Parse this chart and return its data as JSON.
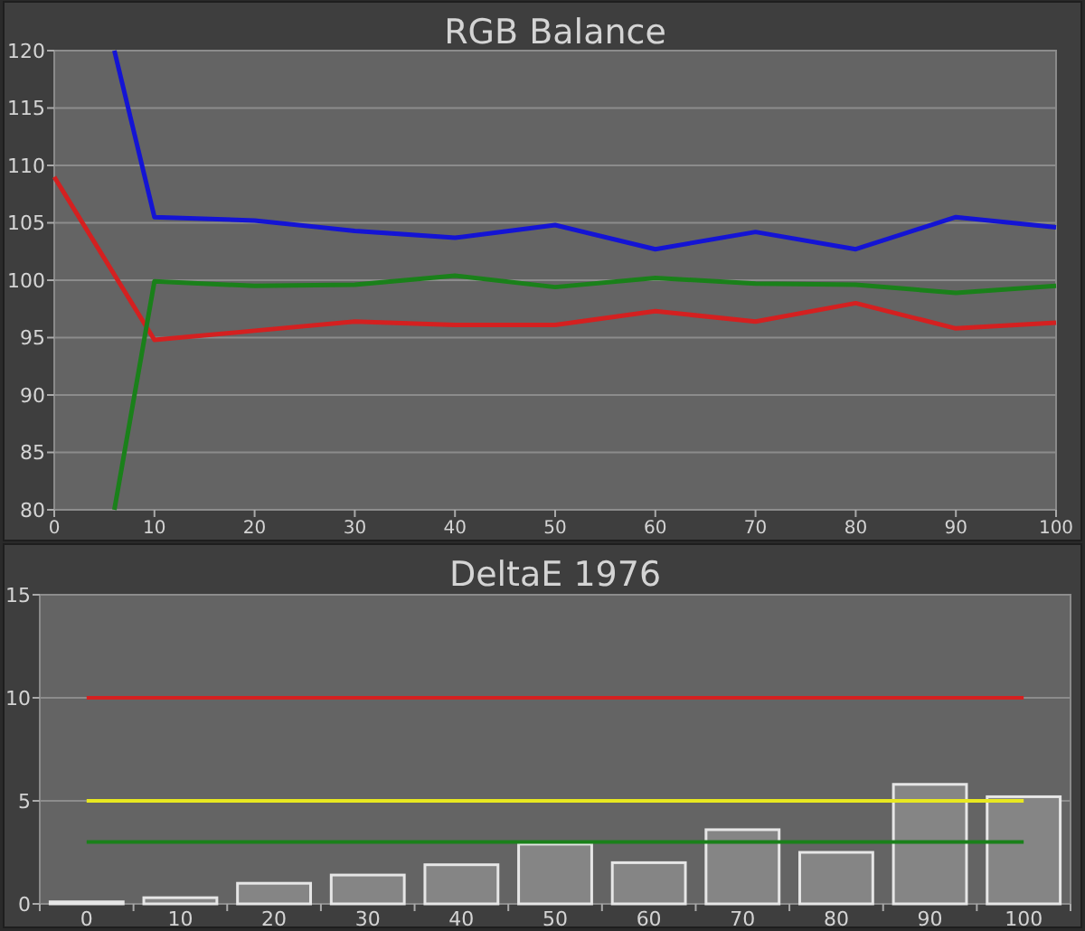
{
  "chart_data": [
    {
      "type": "line",
      "title": "RGB Balance",
      "xlim": [
        0,
        100
      ],
      "xticks": [
        0,
        10,
        20,
        30,
        40,
        50,
        60,
        70,
        80,
        90,
        100
      ],
      "ylim": [
        80,
        120
      ],
      "yticks": [
        80,
        85,
        90,
        95,
        100,
        105,
        110,
        115,
        120
      ],
      "grid": "y",
      "marker": "none",
      "line_style": "solid",
      "series": [
        {
          "color": "#d42020",
          "x": [
            0,
            10,
            20,
            30,
            40,
            50,
            60,
            70,
            80,
            90,
            100
          ],
          "values": [
            109,
            94.8,
            95.6,
            96.4,
            96.1,
            96.1,
            97.3,
            96.4,
            98.0,
            95.8,
            96.3
          ]
        },
        {
          "color": "#1a801a",
          "x": [
            6,
            10,
            20,
            30,
            40,
            50,
            60,
            70,
            80,
            90,
            100
          ],
          "values": [
            80,
            99.9,
            99.5,
            99.6,
            100.4,
            99.4,
            100.2,
            99.7,
            99.6,
            98.9,
            99.5
          ]
        },
        {
          "color": "#1414d4",
          "x": [
            6,
            10,
            20,
            30,
            40,
            50,
            60,
            70,
            80,
            90,
            100
          ],
          "values": [
            120,
            105.5,
            105.2,
            104.3,
            103.7,
            104.8,
            102.7,
            104.2,
            102.7,
            105.5,
            104.6
          ]
        }
      ]
    },
    {
      "type": "bar",
      "title": "DeltaE 1976",
      "categories": [
        "0",
        "10",
        "20",
        "30",
        "40",
        "50",
        "60",
        "70",
        "80",
        "90",
        "100"
      ],
      "values": [
        0.1,
        0.3,
        1.0,
        1.4,
        1.9,
        2.9,
        2.0,
        3.6,
        2.5,
        5.8,
        5.2
      ],
      "color": "#858585",
      "ylim": [
        0,
        15
      ],
      "yticks": [
        0,
        5,
        10,
        15
      ],
      "grid": "y",
      "ref_lines": [
        {
          "axis": "y",
          "value": 10,
          "color": "#d42020"
        },
        {
          "axis": "y",
          "value": 5,
          "color": "#e8e820"
        },
        {
          "axis": "y",
          "value": 3,
          "color": "#1a801a"
        }
      ]
    }
  ]
}
